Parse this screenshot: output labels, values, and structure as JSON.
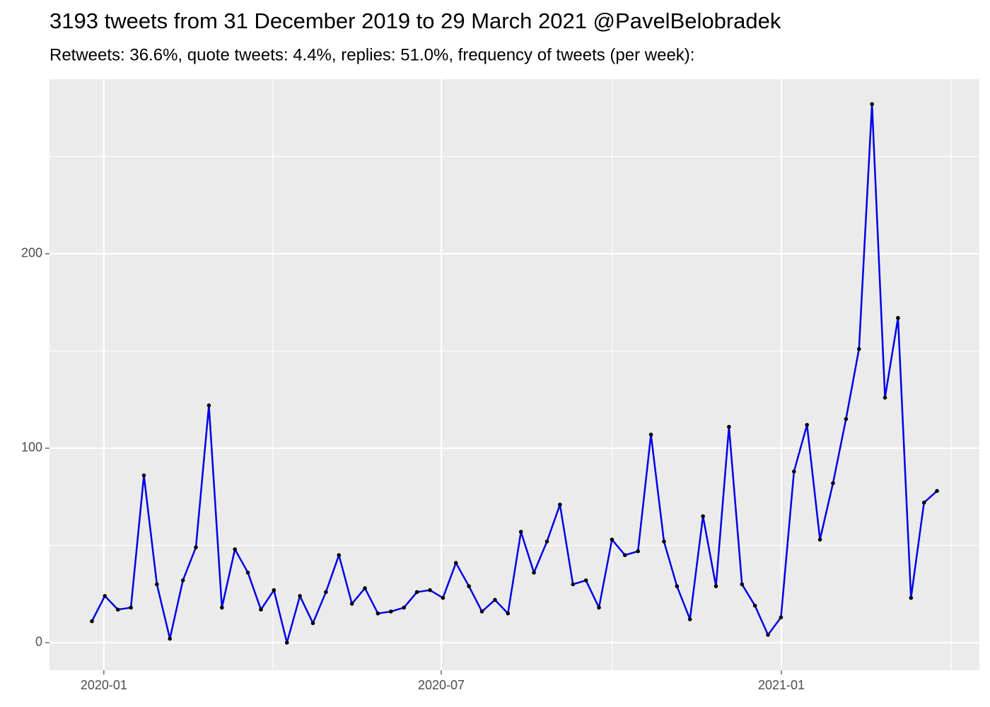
{
  "chart_data": {
    "type": "line",
    "title": "3193 tweets from 31 December 2019 to 29 March 2021 @PavelBelobradek",
    "subtitle": "Retweets: 36.6%, quote tweets: 4.4%, replies: 51.0%, frequency of tweets (per week):",
    "categories": [
      null,
      null,
      null,
      null,
      null,
      null,
      null,
      null,
      null,
      null,
      null,
      null,
      null,
      null,
      null,
      null,
      null,
      null,
      null,
      null,
      null,
      null,
      null,
      null,
      null,
      null,
      null,
      null,
      null,
      null,
      null,
      null,
      null,
      null,
      null,
      null,
      null,
      null,
      null,
      null,
      null,
      null,
      null,
      null,
      null,
      null,
      null,
      null,
      null,
      null,
      null,
      null,
      null,
      null,
      null,
      null,
      null,
      null,
      null,
      null,
      null,
      null,
      null,
      null,
      null,
      null
    ],
    "values": [
      11,
      24,
      17,
      18,
      86,
      30,
      2,
      32,
      49,
      122,
      18,
      48,
      36,
      17,
      27,
      0,
      24,
      10,
      26,
      45,
      20,
      28,
      15,
      16,
      18,
      26,
      27,
      23,
      41,
      29,
      16,
      22,
      15,
      57,
      36,
      52,
      71,
      30,
      32,
      18,
      53,
      45,
      47,
      107,
      52,
      29,
      12,
      65,
      29,
      111,
      30,
      19,
      4,
      13,
      88,
      112,
      53,
      82,
      115,
      151,
      277,
      126,
      167,
      23,
      72,
      78
    ],
    "color": "#0000e6",
    "point_color": "#000000",
    "xlim": [
      -3.26,
      68.26
    ],
    "xticks": [
      {
        "value": 0.92,
        "label": "2020-01"
      },
      {
        "value": 26.87,
        "label": "2020-07"
      },
      {
        "value": 53.03,
        "label": "2021-01"
      }
    ],
    "minor_xgrid": [
      13.92,
      40.03,
      66.09
    ],
    "ylim": [
      -14.2,
      289.8
    ],
    "yticks": [
      0,
      100,
      200
    ],
    "minor_ygrid": [
      50,
      150,
      250
    ],
    "grid": true
  }
}
